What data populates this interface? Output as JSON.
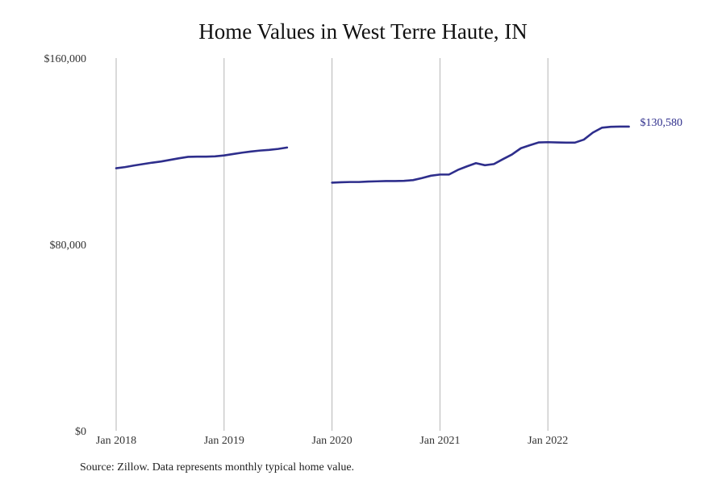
{
  "chart_data": {
    "type": "line",
    "title": "Home Values in West Terre Haute, IN",
    "xlabel": "",
    "ylabel": "",
    "ylim": [
      0,
      160000
    ],
    "y_ticks": [
      {
        "value": 0,
        "label": "$0"
      },
      {
        "value": 80000,
        "label": "$80,000"
      },
      {
        "value": 160000,
        "label": "$160,000"
      }
    ],
    "x_ticks": [
      {
        "date": "2018-01",
        "label": "Jan 2018"
      },
      {
        "date": "2019-01",
        "label": "Jan 2019"
      },
      {
        "date": "2020-01",
        "label": "Jan 2020"
      },
      {
        "date": "2021-01",
        "label": "Jan 2021"
      },
      {
        "date": "2022-01",
        "label": "Jan 2022"
      }
    ],
    "xlim": [
      "2018-01",
      "2022-10"
    ],
    "grid": "vertical",
    "line_color": "#2e2e8c",
    "end_label": "$130,580",
    "series": [
      {
        "segments": [
          {
            "x": [
              "2018-01",
              "2018-02",
              "2018-03",
              "2018-04",
              "2018-05",
              "2018-06",
              "2018-07",
              "2018-08",
              "2018-09",
              "2018-10",
              "2018-11",
              "2018-12",
              "2019-01",
              "2019-02",
              "2019-03",
              "2019-04",
              "2019-05",
              "2019-06",
              "2019-07",
              "2019-08"
            ],
            "y": [
              112700,
              113200,
              113900,
              114500,
              115100,
              115600,
              116300,
              117000,
              117600,
              117700,
              117700,
              117800,
              118200,
              118800,
              119400,
              119900,
              120300,
              120600,
              121000,
              121600
            ]
          },
          {
            "x": [
              "2020-01",
              "2020-02",
              "2020-03",
              "2020-04",
              "2020-05",
              "2020-06",
              "2020-07",
              "2020-08",
              "2020-09",
              "2020-10",
              "2020-11",
              "2020-12",
              "2021-01",
              "2021-02",
              "2021-03",
              "2021-04",
              "2021-05",
              "2021-06",
              "2021-07",
              "2021-08",
              "2021-09",
              "2021-10",
              "2021-11",
              "2021-12",
              "2022-01",
              "2022-02",
              "2022-03",
              "2022-04",
              "2022-05",
              "2022-06",
              "2022-07",
              "2022-08",
              "2022-09",
              "2022-10"
            ],
            "y": [
              106500,
              106700,
              106800,
              106800,
              107000,
              107100,
              107200,
              107200,
              107300,
              107600,
              108500,
              109500,
              110000,
              110000,
              112000,
              113500,
              114900,
              114000,
              114500,
              116600,
              118600,
              121300,
              122600,
              123800,
              123900,
              123800,
              123700,
              123700,
              125000,
              128000,
              130100,
              130500,
              130600,
              130580
            ]
          }
        ]
      }
    ],
    "source": "Source: Zillow. Data represents monthly typical home value."
  }
}
